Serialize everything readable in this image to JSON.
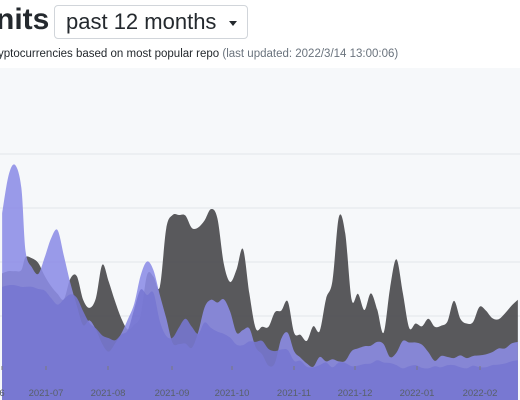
{
  "header": {
    "title": "nits",
    "range_label": "past 12 months",
    "subtitle_text": "yptocurrencies based on most popular repo",
    "subtitle_updated": "(last updated: 2022/3/14 13:00:06)"
  },
  "chart_data": {
    "type": "area",
    "title": "",
    "xlabel": "",
    "ylabel": "",
    "x_ticks": [
      "6",
      "2021-07",
      "2021-08",
      "2021-09",
      "2021-10",
      "2021-11",
      "2021-12",
      "2022-01",
      "2022-02"
    ],
    "ylim": [
      0,
      5
    ],
    "grid": true,
    "x": [
      "2021-06-20",
      "2021-06-23",
      "2021-06-26",
      "2021-06-29",
      "2021-07-01",
      "2021-07-04",
      "2021-07-07",
      "2021-07-10",
      "2021-07-13",
      "2021-07-16",
      "2021-07-19",
      "2021-07-22",
      "2021-07-25",
      "2021-07-28",
      "2021-07-31",
      "2021-08-03",
      "2021-08-06",
      "2021-08-09",
      "2021-08-12",
      "2021-08-15",
      "2021-08-18",
      "2021-08-21",
      "2021-08-24",
      "2021-08-27",
      "2021-08-30",
      "2021-09-02",
      "2021-09-05",
      "2021-09-08",
      "2021-09-11",
      "2021-09-14",
      "2021-09-17",
      "2021-09-20",
      "2021-09-23",
      "2021-09-26",
      "2021-09-29",
      "2021-10-02",
      "2021-10-05",
      "2021-10-08",
      "2021-10-11",
      "2021-10-14",
      "2021-10-17",
      "2021-10-20",
      "2021-10-23",
      "2021-10-26",
      "2021-10-29",
      "2021-11-01",
      "2021-11-04",
      "2021-11-07",
      "2021-11-10",
      "2021-11-13",
      "2021-11-16",
      "2021-11-19",
      "2021-11-22",
      "2021-11-25",
      "2021-11-28",
      "2021-12-01",
      "2021-12-04",
      "2021-12-07",
      "2021-12-10",
      "2021-12-13",
      "2021-12-16",
      "2021-12-19",
      "2021-12-22",
      "2021-12-25",
      "2021-12-28",
      "2021-12-31",
      "2022-01-03",
      "2022-01-06",
      "2022-01-09",
      "2022-01-12",
      "2022-01-15",
      "2022-01-18",
      "2022-01-21",
      "2022-01-24",
      "2022-01-27",
      "2022-01-30",
      "2022-02-02",
      "2022-02-05",
      "2022-02-08",
      "2022-02-11",
      "2022-02-14",
      "2022-02-17"
    ],
    "series": [
      {
        "color": "#4b4b4e",
        "values": [
          1.79,
          1.83,
          1.83,
          1.85,
          2.09,
          2.07,
          1.98,
          1.74,
          1.55,
          1.41,
          1.31,
          1.69,
          1.74,
          1.3,
          1.15,
          1.33,
          1.95,
          1.64,
          1.27,
          0.95,
          0.75,
          0.84,
          1.01,
          1.76,
          1.73,
          1.54,
          2.62,
          2.87,
          2.87,
          2.86,
          2.63,
          2.64,
          2.77,
          2.98,
          2.81,
          1.97,
          1.63,
          1.86,
          2.24,
          1.42,
          0.77,
          0.8,
          0.8,
          1.07,
          1.1,
          1.27,
          0.69,
          0.65,
          0.54,
          0.81,
          0.72,
          1.32,
          1.65,
          2.83,
          2.53,
          1.3,
          1.41,
          1.11,
          1.42,
          1.12,
          0.69,
          1.51,
          2.05,
          1.43,
          0.78,
          0.86,
          0.81,
          0.95,
          0.8,
          0.82,
          0.9,
          1.28,
          0.95,
          0.86,
          0.89,
          1.17,
          1.1,
          0.96,
          0.94,
          1.05,
          1.19,
          1.3
        ]
      },
      {
        "color": "#8c8ce6",
        "values": [
          2.9,
          3.6,
          3.8,
          3.38,
          2.2,
          1.9,
          1.78,
          2.09,
          2.44,
          2.59,
          2.11,
          1.61,
          1.2,
          0.83,
          0.92,
          0.75,
          0.48,
          0.34,
          0.49,
          0.68,
          0.94,
          1.23,
          1.75,
          2.01,
          1.85,
          1.39,
          0.96,
          0.5,
          0.48,
          0.49,
          0.41,
          0.7,
          1.16,
          1.3,
          1.25,
          1.31,
          1.08,
          0.69,
          0.74,
          0.77,
          0.42,
          0.29,
          0.08,
          0.13,
          0.58,
          0.69,
          0.35,
          0.23,
          0.12,
          0.06,
          0.24,
          0.16,
          0.2,
          0.16,
          0.17,
          0.35,
          0.4,
          0.44,
          0.45,
          0.52,
          0.48,
          0.24,
          0.32,
          0.54,
          0.51,
          0.51,
          0.47,
          0.33,
          0.17,
          0.26,
          0.24,
          0.22,
          0.27,
          0.22,
          0.26,
          0.27,
          0.29,
          0.33,
          0.4,
          0.4,
          0.49,
          0.52
        ]
      },
      {
        "color": "#7676d1",
        "values": [
          1.54,
          1.57,
          1.57,
          1.54,
          1.54,
          1.54,
          1.5,
          1.47,
          1.33,
          1.21,
          1.31,
          1.4,
          1.34,
          1.09,
          0.87,
          0.77,
          0.64,
          0.59,
          0.55,
          0.66,
          0.74,
          1.13,
          1.49,
          1.39,
          1.43,
          0.9,
          0.63,
          0.6,
          0.79,
          0.95,
          0.8,
          0.67,
          0.88,
          0.78,
          0.71,
          0.67,
          0.6,
          0.47,
          0.46,
          0.53,
          0.52,
          0.54,
          0.39,
          0.35,
          0.38,
          0.37,
          0.17,
          0.17,
          0.06,
          0.05,
          0.09,
          0.14,
          0.05,
          0.14,
          0.13,
          0.07,
          0.08,
          0.11,
          0.12,
          0.18,
          0.14,
          0.13,
          0.09,
          0.03,
          0.07,
          0.09,
          0.04,
          0.03,
          0.07,
          0.05,
          0.09,
          0.09,
          0.05,
          0.03,
          0.08,
          0.05,
          0.05,
          0.09,
          0.1,
          0.12,
          0.16,
          0.18
        ]
      }
    ]
  }
}
